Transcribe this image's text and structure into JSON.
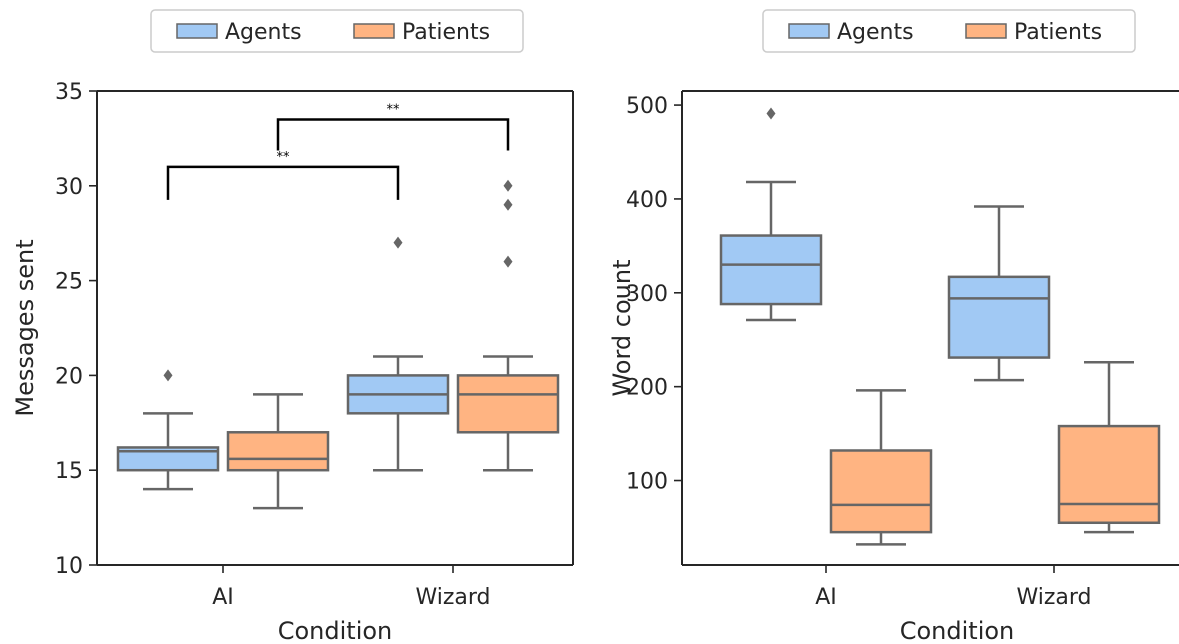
{
  "chart_data": [
    {
      "type": "box",
      "xlabel": "Condition",
      "ylabel": "Messages sent",
      "categories": [
        "AI",
        "Wizard"
      ],
      "ylim": [
        10,
        35
      ],
      "yticks": [
        10,
        15,
        20,
        25,
        30,
        35
      ],
      "legend": {
        "placement": "top-center",
        "entries": [
          "Agents",
          "Patients"
        ]
      },
      "series": [
        {
          "name": "Agents",
          "color": "#a1c9f4",
          "boxes": [
            {
              "category": "AI",
              "whisker_low": 14,
              "q1": 15,
              "median": 16,
              "q3": 16.2,
              "whisker_high": 18,
              "outliers": [
                20
              ]
            },
            {
              "category": "Wizard",
              "whisker_low": 15,
              "q1": 18,
              "median": 19,
              "q3": 20,
              "whisker_high": 21,
              "outliers": [
                27
              ]
            }
          ]
        },
        {
          "name": "Patients",
          "color": "#ffb482",
          "boxes": [
            {
              "category": "AI",
              "whisker_low": 13,
              "q1": 15,
              "median": 15.6,
              "q3": 17,
              "whisker_high": 19,
              "outliers": []
            },
            {
              "category": "Wizard",
              "whisker_low": 15,
              "q1": 17,
              "median": 19,
              "q3": 20,
              "whisker_high": 21,
              "outliers": [
                26,
                29,
                30
              ]
            }
          ]
        }
      ],
      "annotations": [
        {
          "text": "**",
          "from": "AI Agents",
          "to": "Wizard Agents",
          "level": 31
        },
        {
          "text": "**",
          "from": "AI Patients",
          "to": "Wizard Patients",
          "level": 33.5
        }
      ]
    },
    {
      "type": "box",
      "xlabel": "Condition",
      "ylabel": "Word count",
      "categories": [
        "AI",
        "Wizard"
      ],
      "ylim": [
        10,
        515
      ],
      "yticks": [
        100,
        200,
        300,
        400,
        500
      ],
      "legend": {
        "placement": "top-center",
        "entries": [
          "Agents",
          "Patients"
        ]
      },
      "series": [
        {
          "name": "Agents",
          "color": "#a1c9f4",
          "boxes": [
            {
              "category": "AI",
              "whisker_low": 271,
              "q1": 288,
              "median": 330,
              "q3": 361,
              "whisker_high": 418,
              "outliers": [
                491
              ]
            },
            {
              "category": "Wizard",
              "whisker_low": 207,
              "q1": 231,
              "median": 294,
              "q3": 317,
              "whisker_high": 392,
              "outliers": []
            }
          ]
        },
        {
          "name": "Patients",
          "color": "#ffb482",
          "boxes": [
            {
              "category": "AI",
              "whisker_low": 32,
              "q1": 45,
              "median": 74,
              "q3": 132,
              "whisker_high": 196,
              "outliers": []
            },
            {
              "category": "Wizard",
              "whisker_low": 45,
              "q1": 55,
              "median": 75,
              "q3": 158,
              "whisker_high": 226,
              "outliers": []
            }
          ]
        }
      ],
      "annotations": []
    }
  ]
}
